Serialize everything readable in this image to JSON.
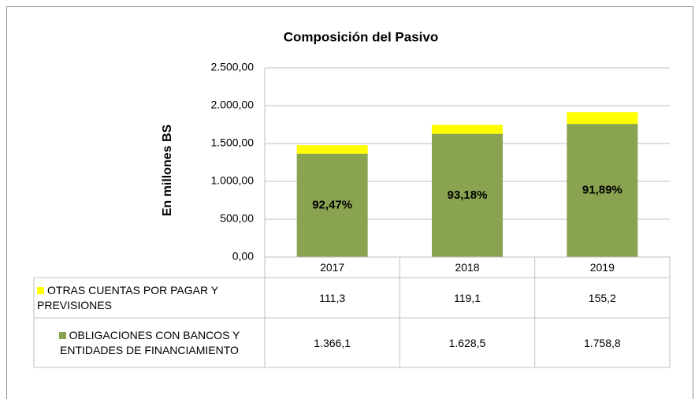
{
  "chart_data": {
    "type": "stacked_bar",
    "title": "Composición del Pasivo",
    "y_label": "En millones BS",
    "categories": [
      "2017",
      "2018",
      "2019"
    ],
    "series": [
      {
        "name": "OBLIGACIONES CON BANCOS Y ENTIDADES DE FINANCIAMIENTO",
        "color": "#8aa350",
        "values": [
          1366.1,
          1628.5,
          1758.8
        ],
        "value_labels": [
          "1.366,1",
          "1.628,5",
          "1.758,8"
        ]
      },
      {
        "name": "OTRAS CUENTAS POR PAGAR Y PREVISIONES",
        "color": "#ffff00",
        "values": [
          111.3,
          119.1,
          155.2
        ],
        "value_labels": [
          "111,3",
          "119,1",
          "155,2"
        ]
      }
    ],
    "annotations": [
      "92,47%",
      "93,18%",
      "91,89%"
    ],
    "ylim": [
      0,
      2500
    ],
    "yticks": [
      {
        "value": 0,
        "label": "0,00"
      },
      {
        "value": 500,
        "label": "500,00"
      },
      {
        "value": 1000,
        "label": "1.000,00"
      },
      {
        "value": 1500,
        "label": "1.500,00"
      },
      {
        "value": 2000,
        "label": "2.000,00"
      },
      {
        "value": 2500,
        "label": "2.500,00"
      }
    ],
    "grid": true
  }
}
